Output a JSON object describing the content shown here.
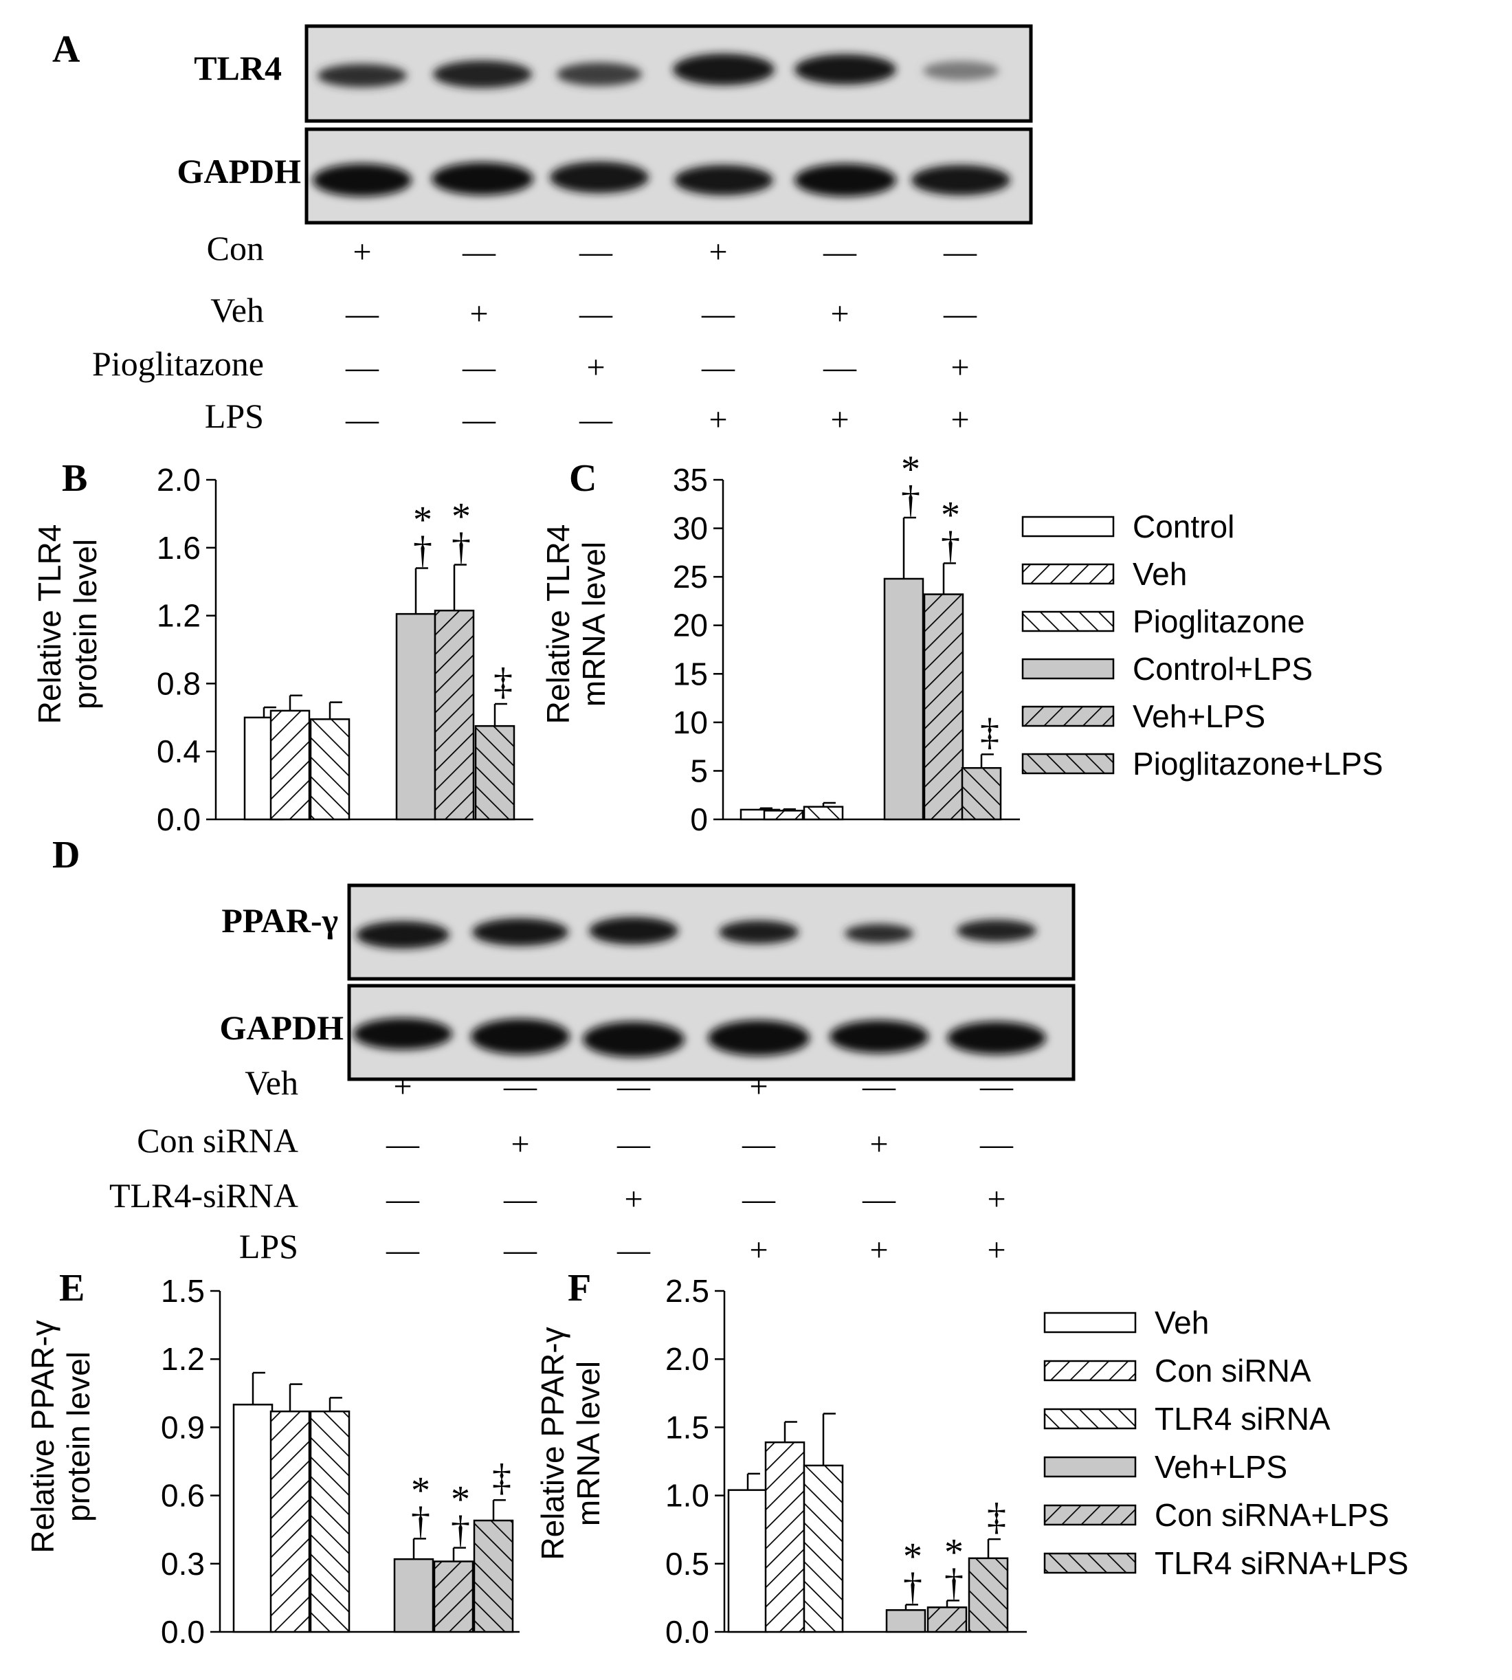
{
  "panels": {
    "A": "A",
    "B": "B",
    "C": "C",
    "D": "D",
    "E": "E",
    "F": "F"
  },
  "blots": {
    "A": {
      "rows": [
        "TLR4",
        "GAPDH"
      ],
      "treatments": [
        {
          "label": "Con",
          "signs": [
            "+",
            "—",
            "—",
            "+",
            "—",
            "—"
          ]
        },
        {
          "label": "Veh",
          "signs": [
            "—",
            "+",
            "—",
            "—",
            "+",
            "—"
          ]
        },
        {
          "label": "Pioglitazone",
          "signs": [
            "—",
            "—",
            "+",
            "—",
            "—",
            "+"
          ]
        },
        {
          "label": "LPS",
          "signs": [
            "—",
            "—",
            "—",
            "+",
            "+",
            "+"
          ]
        }
      ]
    },
    "D": {
      "rows": [
        "PPAR-γ",
        "GAPDH"
      ],
      "treatments": [
        {
          "label": "Veh",
          "signs": [
            "+",
            "—",
            "—",
            "+",
            "—",
            "—"
          ]
        },
        {
          "label": "Con siRNA",
          "signs": [
            "—",
            "+",
            "—",
            "—",
            "+",
            "—"
          ]
        },
        {
          "label": "TLR4-siRNA",
          "signs": [
            "—",
            "—",
            "+",
            "—",
            "—",
            "+"
          ]
        },
        {
          "label": "LPS",
          "signs": [
            "—",
            "—",
            "—",
            "+",
            "+",
            "+"
          ]
        }
      ]
    }
  },
  "legends": {
    "top": [
      "Control",
      "Veh",
      "Pioglitazone",
      "Control+LPS",
      "Veh+LPS",
      "Pioglitazone+LPS"
    ],
    "bottom": [
      "Veh",
      "Con siRNA",
      "TLR4 siRNA",
      "Veh+LPS",
      "Con siRNA+LPS",
      "TLR4 siRNA+LPS"
    ]
  },
  "chart_data": [
    {
      "panel": "B",
      "type": "bar",
      "ylabel": [
        "Relative TLR4",
        "protein level"
      ],
      "ylim": [
        0,
        2.0
      ],
      "yticks": [
        "0.0",
        "0.4",
        "0.8",
        "1.2",
        "1.6",
        "2.0"
      ],
      "categories": [
        "Control",
        "Veh",
        "Pioglitazone",
        "Control+LPS",
        "Veh+LPS",
        "Pioglitazone+LPS"
      ],
      "values": [
        0.6,
        0.64,
        0.59,
        1.21,
        1.23,
        0.55
      ],
      "errors": [
        0.06,
        0.09,
        0.1,
        0.27,
        0.27,
        0.13
      ],
      "annotations": [
        "",
        "",
        "",
        "*†",
        "*†",
        "‡"
      ]
    },
    {
      "panel": "C",
      "type": "bar",
      "ylabel": [
        "Relative TLR4",
        "mRNA level"
      ],
      "ylim": [
        0,
        35
      ],
      "yticks": [
        "0",
        "5",
        "10",
        "15",
        "20",
        "25",
        "30",
        "35"
      ],
      "categories": [
        "Control",
        "Veh",
        "Pioglitazone",
        "Control+LPS",
        "Veh+LPS",
        "Pioglitazone+LPS"
      ],
      "values": [
        1.0,
        0.9,
        1.3,
        24.8,
        23.2,
        5.3
      ],
      "errors": [
        0.15,
        0.15,
        0.4,
        6.3,
        3.2,
        1.4
      ],
      "annotations": [
        "",
        "",
        "",
        "*†",
        "*†",
        "‡"
      ]
    },
    {
      "panel": "E",
      "type": "bar",
      "ylabel": [
        "Relative PPAR-γ",
        "protein level"
      ],
      "ylim": [
        0,
        1.5
      ],
      "yticks": [
        "0.0",
        "0.3",
        "0.6",
        "0.9",
        "1.2",
        "1.5"
      ],
      "categories": [
        "Veh",
        "Con siRNA",
        "TLR4 siRNA",
        "Veh+LPS",
        "Con siRNA+LPS",
        "TLR4 siRNA+LPS"
      ],
      "values": [
        1.0,
        0.97,
        0.97,
        0.32,
        0.31,
        0.49
      ],
      "errors": [
        0.14,
        0.12,
        0.06,
        0.09,
        0.06,
        0.09
      ],
      "annotations": [
        "",
        "",
        "",
        "*†",
        "*†",
        "‡"
      ]
    },
    {
      "panel": "F",
      "type": "bar",
      "ylabel": [
        "Relative PPAR-γ",
        "mRNA level"
      ],
      "ylim": [
        0,
        2.5
      ],
      "yticks": [
        "0.0",
        "0.5",
        "1.0",
        "1.5",
        "2.0",
        "2.5"
      ],
      "categories": [
        "Veh",
        "Con siRNA",
        "TLR4 siRNA",
        "Veh+LPS",
        "Con siRNA+LPS",
        "TLR4 siRNA+LPS"
      ],
      "values": [
        1.04,
        1.39,
        1.22,
        0.16,
        0.18,
        0.54
      ],
      "errors": [
        0.12,
        0.15,
        0.38,
        0.04,
        0.05,
        0.14
      ],
      "annotations": [
        "",
        "",
        "",
        "*†",
        "*†",
        "‡"
      ]
    }
  ]
}
